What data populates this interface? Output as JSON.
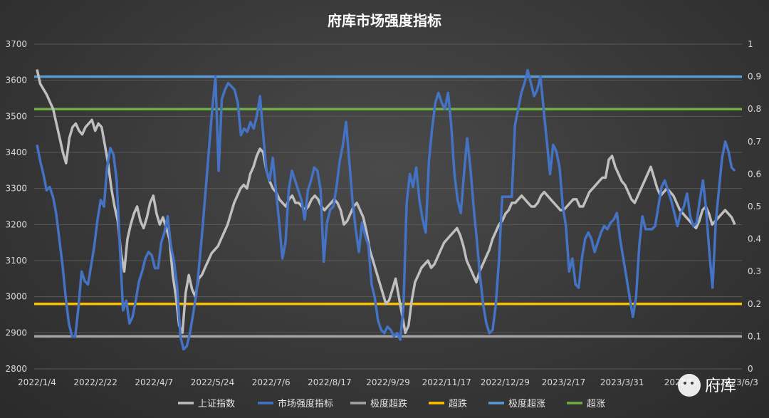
{
  "watermark": {
    "text": "府库"
  },
  "chart_data": {
    "type": "line",
    "title": "府库市场强度指标",
    "x_tick_labels": [
      "2022/1/4",
      "2022/2/22",
      "2022/4/7",
      "2022/5/24",
      "2022/7/6",
      "2022/8/17",
      "2022/9/29",
      "2022/11/17",
      "2022/12/29",
      "2023/2/17",
      "2023/3/31",
      "2023/5/",
      "2023/6/3"
    ],
    "y_left": {
      "ticks": [
        2800,
        2900,
        3000,
        3100,
        3200,
        3300,
        3400,
        3500,
        3600,
        3700
      ],
      "range": [
        2800,
        3700
      ]
    },
    "y_right": {
      "ticks": [
        "0",
        "0.1",
        "0.2",
        "0.3",
        "0.4",
        "0.5",
        "0.6",
        "0.7",
        "0.8",
        "0.9",
        "1"
      ],
      "range": [
        0,
        1
      ]
    },
    "grid": true,
    "legend_position": "bottom",
    "colors": {
      "sh": "#bfbfbf",
      "strength": "#4472c4",
      "extreme_low": "#a5a5a5",
      "oversold": "#ffc000",
      "extreme_high": "#5b9bd5",
      "overbought": "#70ad47"
    },
    "series": [
      {
        "name": "上证指数",
        "axis": "left",
        "color": "#bfbfbf",
        "values": [
          3630,
          3590,
          3575,
          3560,
          3540,
          3520,
          3480,
          3440,
          3400,
          3370,
          3440,
          3470,
          3480,
          3460,
          3450,
          3470,
          3480,
          3490,
          3460,
          3480,
          3470,
          3420,
          3370,
          3300,
          3250,
          3210,
          3120,
          3070,
          3160,
          3200,
          3230,
          3250,
          3210,
          3190,
          3220,
          3260,
          3280,
          3230,
          3200,
          3220,
          3190,
          3160,
          3060,
          3000,
          2920,
          2900,
          3010,
          3060,
          3020,
          3000,
          3050,
          3060,
          3080,
          3100,
          3120,
          3130,
          3140,
          3160,
          3180,
          3200,
          3230,
          3260,
          3280,
          3300,
          3310,
          3300,
          3340,
          3360,
          3390,
          3410,
          3400,
          3350,
          3320,
          3300,
          3290,
          3270,
          3260,
          3250,
          3270,
          3280,
          3260,
          3260,
          3250,
          3240,
          3250,
          3270,
          3280,
          3270,
          3250,
          3240,
          3250,
          3260,
          3270,
          3260,
          3240,
          3200,
          3210,
          3230,
          3250,
          3260,
          3240,
          3220,
          3180,
          3130,
          3100,
          3070,
          3040,
          3010,
          2980,
          2990,
          3020,
          3050,
          3000,
          2950,
          2900,
          2920,
          2990,
          3040,
          3060,
          3080,
          3090,
          3100,
          3080,
          3090,
          3110,
          3130,
          3150,
          3160,
          3170,
          3180,
          3190,
          3170,
          3140,
          3100,
          3080,
          3060,
          3040,
          3070,
          3090,
          3110,
          3130,
          3160,
          3180,
          3200,
          3210,
          3230,
          3240,
          3260,
          3260,
          3270,
          3280,
          3270,
          3260,
          3250,
          3250,
          3260,
          3280,
          3290,
          3280,
          3270,
          3260,
          3250,
          3240,
          3240,
          3250,
          3260,
          3270,
          3270,
          3250,
          3250,
          3270,
          3290,
          3300,
          3310,
          3320,
          3330,
          3330,
          3380,
          3390,
          3360,
          3340,
          3320,
          3310,
          3290,
          3270,
          3260,
          3280,
          3300,
          3320,
          3340,
          3360,
          3330,
          3300,
          3280,
          3290,
          3300,
          3290,
          3280,
          3260,
          3240,
          3230,
          3220,
          3210,
          3200,
          3190,
          3210,
          3240,
          3250,
          3230,
          3200,
          3210,
          3220,
          3230,
          3240,
          3230,
          3220,
          3200
        ]
      },
      {
        "name": "市场强度指标",
        "axis": "right",
        "color": "#4472c4",
        "values": [
          0.69,
          0.64,
          0.6,
          0.55,
          0.56,
          0.53,
          0.48,
          0.4,
          0.32,
          0.22,
          0.14,
          0.1,
          0.1,
          0.19,
          0.3,
          0.27,
          0.26,
          0.32,
          0.38,
          0.46,
          0.52,
          0.5,
          0.62,
          0.68,
          0.66,
          0.58,
          0.38,
          0.18,
          0.21,
          0.14,
          0.16,
          0.21,
          0.27,
          0.3,
          0.34,
          0.36,
          0.35,
          0.31,
          0.31,
          0.39,
          0.42,
          0.47,
          0.38,
          0.33,
          0.25,
          0.1,
          0.06,
          0.07,
          0.11,
          0.17,
          0.23,
          0.33,
          0.44,
          0.56,
          0.68,
          0.8,
          0.9,
          0.61,
          0.83,
          0.86,
          0.88,
          0.87,
          0.86,
          0.82,
          0.72,
          0.74,
          0.73,
          0.76,
          0.74,
          0.78,
          0.84,
          0.72,
          0.61,
          0.58,
          0.65,
          0.55,
          0.45,
          0.34,
          0.39,
          0.55,
          0.61,
          0.58,
          0.55,
          0.52,
          0.46,
          0.55,
          0.58,
          0.62,
          0.61,
          0.55,
          0.33,
          0.45,
          0.49,
          0.5,
          0.56,
          0.64,
          0.69,
          0.76,
          0.64,
          0.52,
          0.43,
          0.36,
          0.45,
          0.41,
          0.38,
          0.26,
          0.22,
          0.15,
          0.12,
          0.11,
          0.13,
          0.12,
          0.1,
          0.11,
          0.09,
          0.19,
          0.51,
          0.6,
          0.56,
          0.62,
          0.52,
          0.46,
          0.42,
          0.64,
          0.74,
          0.82,
          0.85,
          0.82,
          0.8,
          0.85,
          0.75,
          0.6,
          0.52,
          0.48,
          0.6,
          0.71,
          0.62,
          0.5,
          0.4,
          0.29,
          0.2,
          0.14,
          0.11,
          0.12,
          0.2,
          0.34,
          0.53,
          0.53,
          0.53,
          0.53,
          0.75,
          0.8,
          0.85,
          0.88,
          0.92,
          0.88,
          0.84,
          0.86,
          0.9,
          0.8,
          0.7,
          0.6,
          0.69,
          0.67,
          0.62,
          0.5,
          0.44,
          0.3,
          0.34,
          0.26,
          0.25,
          0.34,
          0.4,
          0.42,
          0.4,
          0.36,
          0.39,
          0.42,
          0.44,
          0.43,
          0.45,
          0.46,
          0.48,
          0.4,
          0.34,
          0.28,
          0.22,
          0.16,
          0.22,
          0.38,
          0.47,
          0.43,
          0.43,
          0.43,
          0.44,
          0.5,
          0.56,
          0.58,
          0.55,
          0.52,
          0.48,
          0.44,
          0.48,
          0.5,
          0.54,
          0.47,
          0.44,
          0.45,
          0.52,
          0.58,
          0.49,
          0.36,
          0.25,
          0.45,
          0.55,
          0.65,
          0.7,
          0.67,
          0.62,
          0.61
        ]
      },
      {
        "name": "极度超跌",
        "axis": "right",
        "color": "#a5a5a5",
        "constant": 0.1
      },
      {
        "name": "超跌",
        "axis": "right",
        "color": "#ffc000",
        "constant": 0.2
      },
      {
        "name": "极度超涨",
        "axis": "right",
        "color": "#5b9bd5",
        "constant": 0.9
      },
      {
        "name": "超涨",
        "axis": "right",
        "color": "#70ad47",
        "constant": 0.8
      }
    ]
  }
}
